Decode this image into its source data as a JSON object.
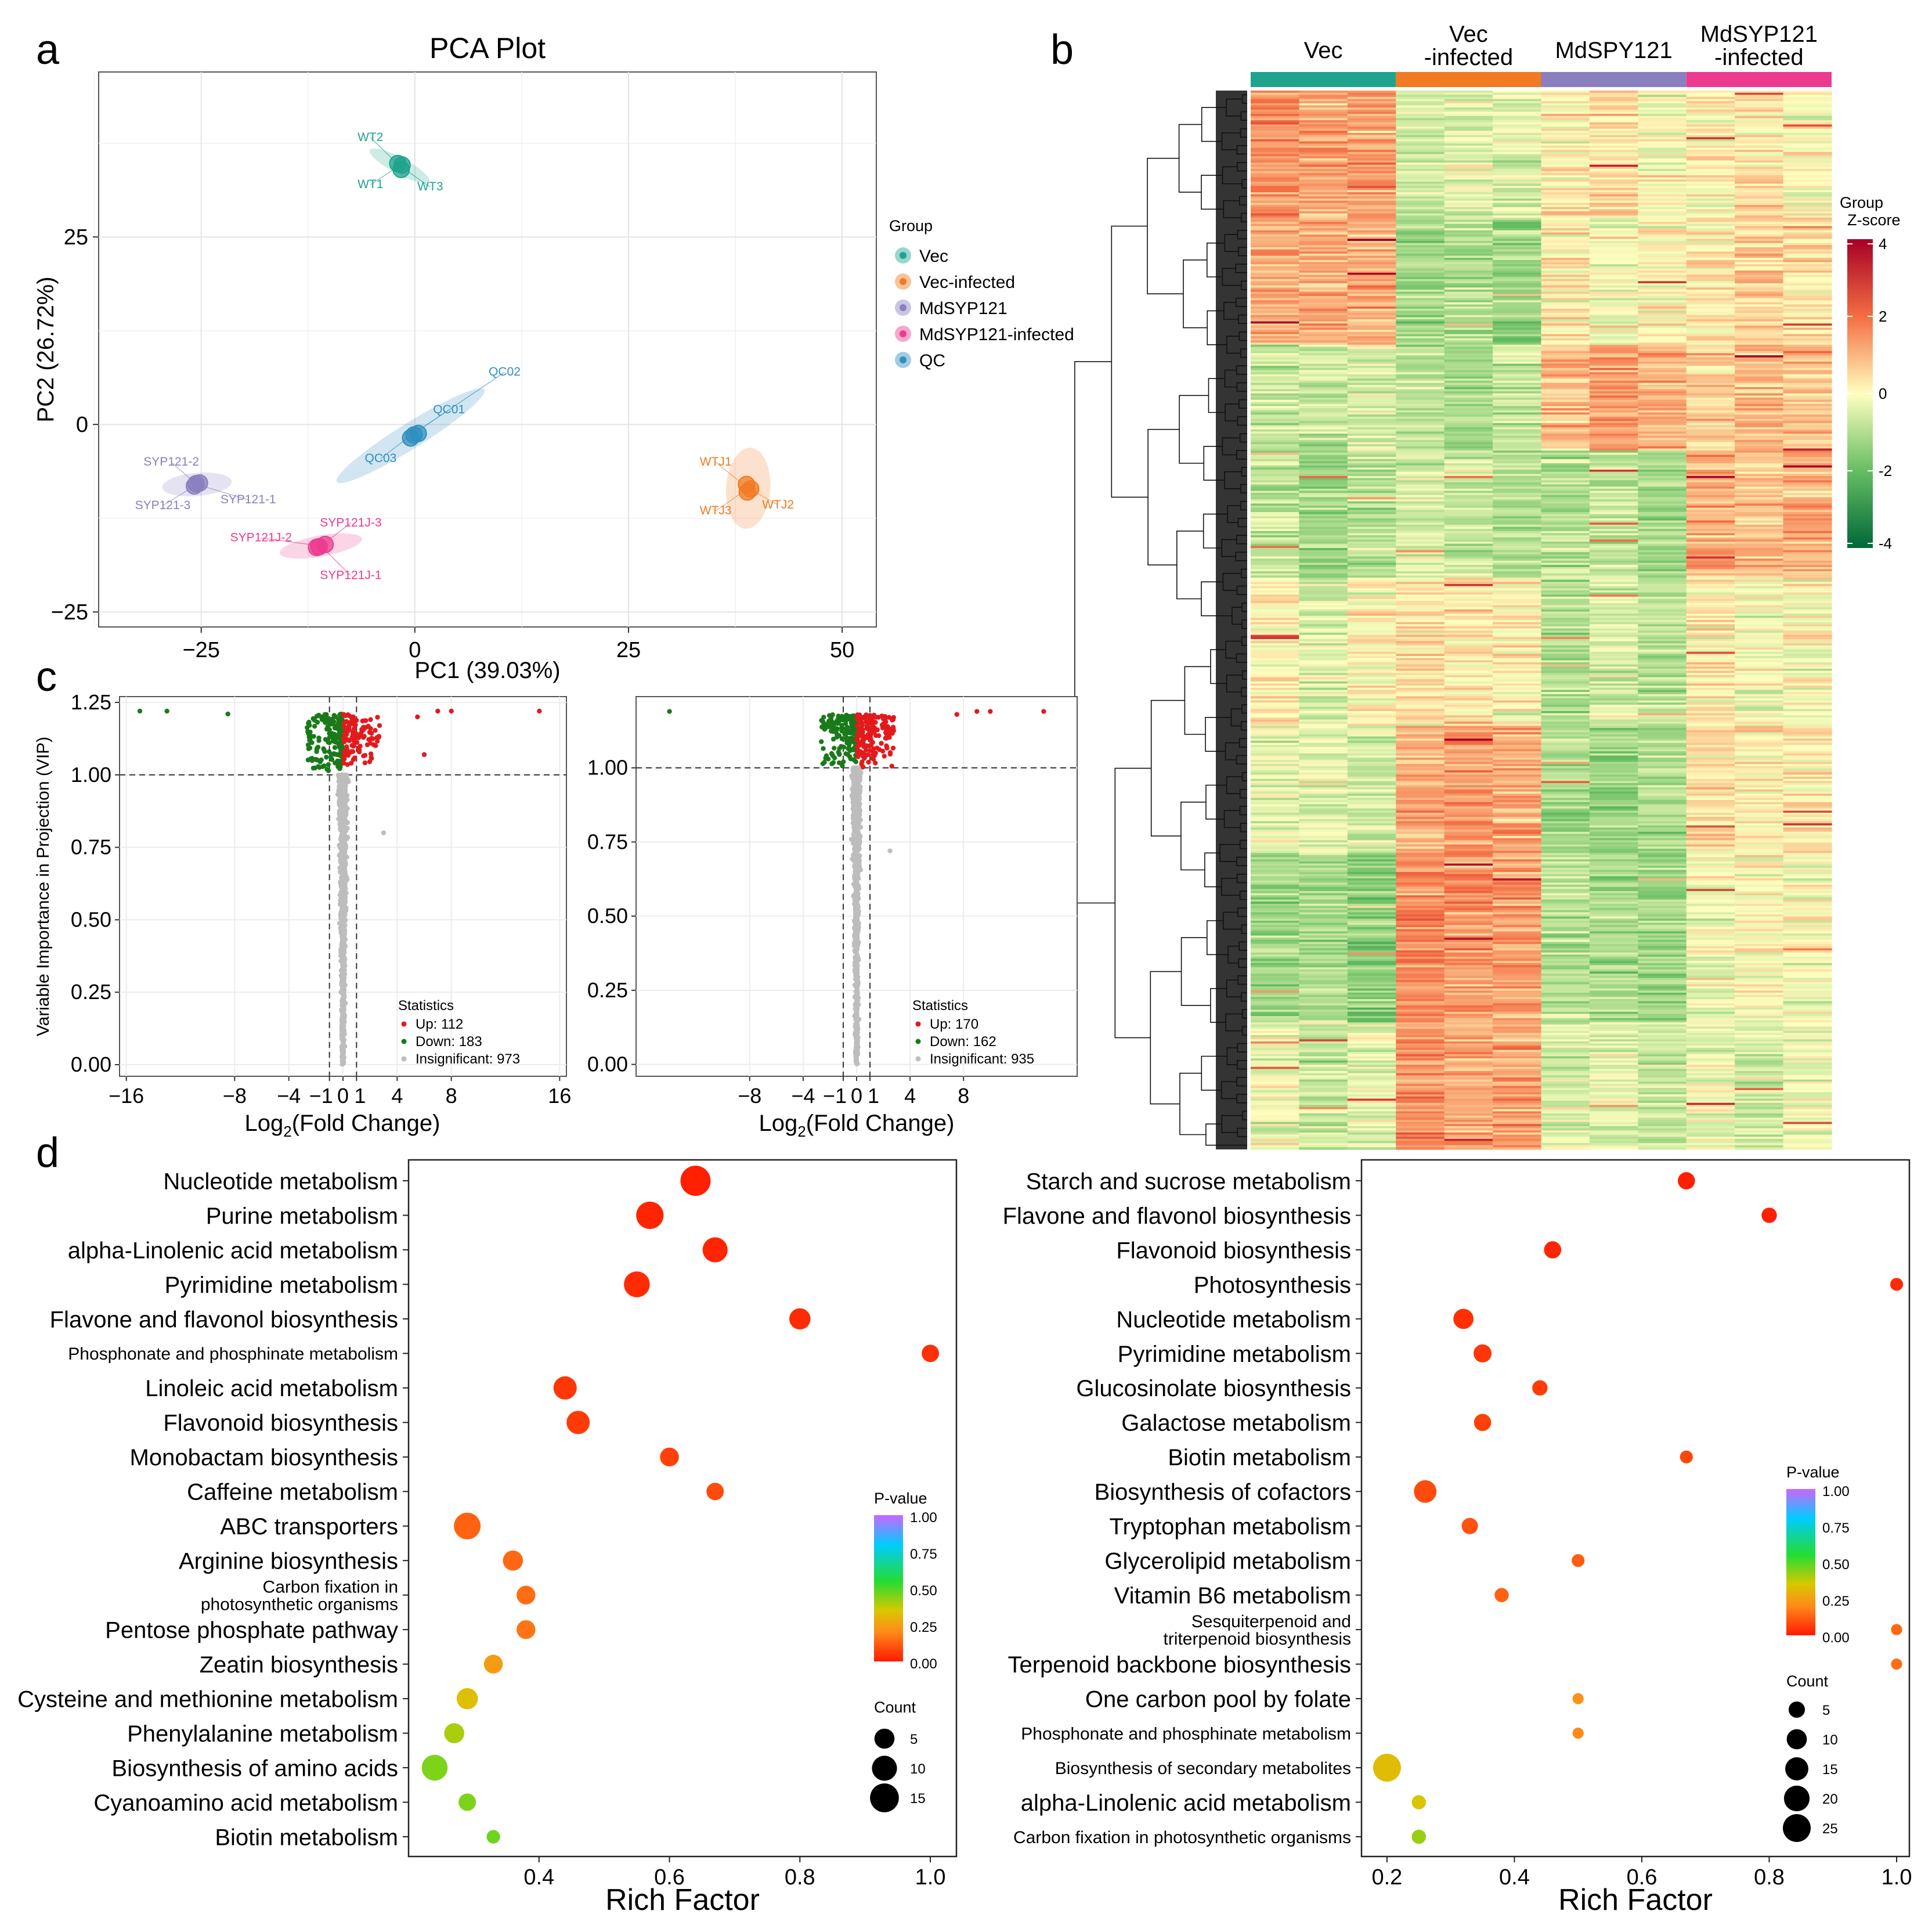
{
  "panel_labels": {
    "a": "a",
    "b": "b",
    "c": "c",
    "d": "d"
  },
  "colors": {
    "vec": "#1fa38c",
    "vec_infected": "#f07b22",
    "mdsyp121": "#8a7fbf",
    "mdsyp121_infected": "#ec3b8e",
    "qc": "#2f8fbf",
    "up": "#e31a1c",
    "down": "#1a7a1a",
    "insig": "#bdbdbd"
  },
  "chart_data": [
    {
      "id": "pca",
      "type": "scatter",
      "title": "PCA Plot",
      "xlabel": "PC1 (39.03%)",
      "ylabel": "PC2 (26.72%)",
      "xlim": [
        -37,
        54
      ],
      "ylim": [
        -27,
        47
      ],
      "xticks": [
        "−25",
        "0",
        "25",
        "50"
      ],
      "xtick_values": [
        -25,
        0,
        25,
        50
      ],
      "yticks": [
        "−25",
        "0",
        "25"
      ],
      "ytick_values": [
        -25,
        0,
        25
      ],
      "legend_title": "Group",
      "legend": [
        "Vec",
        "Vec-infected",
        "MdSYP121",
        "MdSYP121-infected",
        "QC"
      ],
      "groups": [
        {
          "name": "Vec",
          "center": [
            -1.8,
            34.5
          ],
          "points": [
            [
              -2.0,
              34.8
            ],
            [
              -1.6,
              34.0
            ],
            [
              -1.5,
              34.6
            ]
          ],
          "labels": [
            {
              "text": "WT2",
              "x": -5.2,
              "y": 37.8
            },
            {
              "text": "WT1",
              "x": -5.2,
              "y": 31.5
            },
            {
              "text": "WT3",
              "x": 1.8,
              "y": 31.2
            }
          ]
        },
        {
          "name": "Vec-infected",
          "center": [
            39.0,
            -8.5
          ],
          "points": [
            [
              38.8,
              -8.0
            ],
            [
              39.3,
              -8.6
            ],
            [
              38.9,
              -9.0
            ]
          ],
          "labels": [
            {
              "text": "WTJ1",
              "x": 35.2,
              "y": -5.5
            },
            {
              "text": "WTJ3",
              "x": 35.2,
              "y": -12.0
            },
            {
              "text": "WTJ2",
              "x": 42.5,
              "y": -11.2
            }
          ]
        },
        {
          "name": "MdSYP121",
          "center": [
            -25.5,
            -8.0
          ],
          "points": [
            [
              -25.8,
              -8.2
            ],
            [
              -25.2,
              -7.8
            ],
            [
              -25.6,
              -7.9
            ]
          ],
          "labels": [
            {
              "text": "SYP121-2",
              "x": -28.5,
              "y": -5.5
            },
            {
              "text": "SYP121-3",
              "x": -29.5,
              "y": -11.3
            },
            {
              "text": "SYP121-1",
              "x": -19.5,
              "y": -10.5
            }
          ]
        },
        {
          "name": "MdSYP121-infected",
          "center": [
            -11.0,
            -16.2
          ],
          "points": [
            [
              -11.5,
              -16.4
            ],
            [
              -10.5,
              -16.0
            ],
            [
              -11.2,
              -16.3
            ]
          ],
          "labels": [
            {
              "text": "SYP121J-3",
              "x": -7.5,
              "y": -13.6
            },
            {
              "text": "SYP121J-2",
              "x": -18.0,
              "y": -15.6
            },
            {
              "text": "SYP121J-1",
              "x": -7.5,
              "y": -20.6
            }
          ]
        },
        {
          "name": "QC",
          "center": [
            -0.5,
            -1.5
          ],
          "points": [
            [
              -0.5,
              -1.8
            ],
            [
              0.4,
              -1.2
            ],
            [
              -0.1,
              -1.4
            ]
          ],
          "labels": [
            {
              "text": "QC02",
              "x": 10.5,
              "y": 6.5
            },
            {
              "text": "QC01",
              "x": 4.0,
              "y": 1.5
            },
            {
              "text": "QC03",
              "x": -4.0,
              "y": -5.0
            }
          ]
        }
      ]
    },
    {
      "id": "heatmap",
      "type": "heatmap",
      "columns": [
        "Vec",
        "Vec\n-infected",
        "MdSPY121",
        "MdSYP121\n-infected"
      ],
      "column_lines": [
        [
          "Vec"
        ],
        [
          "Vec",
          "-infected"
        ],
        [
          "MdSPY121"
        ],
        [
          "MdSYP121",
          "-infected"
        ]
      ],
      "samples_per_group": 3,
      "legend_title": "Group",
      "legend_subtitle": "Z-score",
      "zlim": [
        -4,
        4
      ],
      "zticks": [
        "4",
        "2",
        "0",
        "-2",
        "-4"
      ],
      "ztick_values": [
        4,
        2,
        0,
        -2,
        -4
      ],
      "row_segments": [
        {
          "rows": 60,
          "values": [
            1.4,
            1.2,
            1.3,
            -0.6,
            -0.4,
            -0.5,
            0.2,
            0.5,
            0.0,
            0.1,
            0.3,
            0.0
          ]
        },
        {
          "rows": 60,
          "values": [
            1.2,
            1.0,
            1.2,
            -1.2,
            -1.0,
            -1.3,
            0.3,
            -0.2,
            0.1,
            0.4,
            0.6,
            0.5
          ]
        },
        {
          "rows": 50,
          "values": [
            -0.6,
            -0.8,
            -0.5,
            -0.9,
            -1.2,
            -0.8,
            0.9,
            1.3,
            1.1,
            0.6,
            0.9,
            0.8
          ]
        },
        {
          "rows": 60,
          "values": [
            -0.8,
            -1.2,
            -0.9,
            -0.5,
            -0.7,
            -0.9,
            -1.0,
            -0.8,
            -1.2,
            1.1,
            0.9,
            1.1
          ]
        },
        {
          "rows": 70,
          "values": [
            0.3,
            -0.4,
            0.1,
            0.4,
            0.3,
            0.2,
            -1.0,
            -0.5,
            -0.9,
            0.2,
            -0.1,
            0.0
          ]
        },
        {
          "rows": 60,
          "values": [
            -0.4,
            -0.3,
            -0.6,
            1.2,
            1.4,
            1.2,
            -1.1,
            -1.3,
            -1.0,
            0.4,
            0.2,
            0.3
          ]
        },
        {
          "rows": 80,
          "values": [
            -1.3,
            -1.1,
            -1.5,
            1.6,
            1.3,
            1.4,
            -0.9,
            -1.1,
            -1.3,
            -0.2,
            0.1,
            -0.1
          ]
        },
        {
          "rows": 60,
          "values": [
            -0.2,
            -0.6,
            -0.4,
            1.5,
            1.2,
            1.3,
            -0.5,
            -0.4,
            -0.6,
            -0.3,
            -0.5,
            -0.2
          ]
        }
      ]
    },
    {
      "id": "volcano_left",
      "type": "scatter",
      "xlabel": "Log",
      "xlabel_sub": "2",
      "xlabel_rest": "(Fold Change)",
      "ylabel": "Variable Importance in Projection (VIP)",
      "xlim": [
        -16.5,
        16.5
      ],
      "ylim": [
        -0.04,
        1.27
      ],
      "xticks": [
        "−16",
        "−8",
        "−4",
        "−1",
        "0",
        "1",
        "4",
        "8",
        "16"
      ],
      "xtick_values": [
        -16,
        -8,
        -4,
        -1,
        0,
        1,
        4,
        8,
        16
      ],
      "yticks": [
        "0.00",
        "0.25",
        "0.50",
        "0.75",
        "1.00",
        "1.25"
      ],
      "ytick_values": [
        0,
        0.25,
        0.5,
        0.75,
        1.0,
        1.25
      ],
      "vline": [
        -1,
        1
      ],
      "hline": 1.0,
      "legend_title": "Statistics",
      "legend": [
        "Up: 112",
        "Down: 183",
        "Insignificant: 973"
      ],
      "counts": {
        "up": 112,
        "down": 183,
        "insig": 973
      },
      "outliers_up": [
        [
          14.5,
          1.22
        ],
        [
          8.0,
          1.22
        ],
        [
          7.0,
          1.22
        ],
        [
          5.5,
          1.2
        ],
        [
          6.0,
          1.07
        ],
        [
          3.0,
          0.8
        ]
      ],
      "outliers_down": [
        [
          -15.0,
          1.22
        ],
        [
          -13.0,
          1.22
        ],
        [
          -8.5,
          1.21
        ]
      ]
    },
    {
      "id": "volcano_right",
      "type": "scatter",
      "xlabel": "Log",
      "xlabel_sub": "2",
      "xlabel_rest": "(Fold Change)",
      "xlim": [
        -16.5,
        16.5
      ],
      "ylim": [
        -0.04,
        1.24
      ],
      "xticks": [
        "−8",
        "−4",
        "−1",
        "0",
        "1",
        "4",
        "8"
      ],
      "xtick_values": [
        -8,
        -4,
        -1,
        0,
        1,
        4,
        8
      ],
      "yticks": [
        "0.00",
        "0.25",
        "0.50",
        "0.75",
        "1.00"
      ],
      "ytick_values": [
        0,
        0.25,
        0.5,
        0.75,
        1.0
      ],
      "vline": [
        -1,
        1
      ],
      "hline": 1.0,
      "legend_title": "Statistics",
      "legend": [
        "Up: 170",
        "Down: 162",
        "Insignificant: 935"
      ],
      "counts": {
        "up": 170,
        "down": 162,
        "insig": 935
      },
      "outliers_up": [
        [
          14.0,
          1.19
        ],
        [
          10.0,
          1.19
        ],
        [
          9.0,
          1.19
        ],
        [
          7.5,
          1.18
        ],
        [
          2.5,
          0.72
        ]
      ],
      "outliers_down": [
        [
          -14.0,
          1.19
        ]
      ]
    },
    {
      "id": "kegg_left",
      "type": "scatter",
      "xlabel": "Rich Factor",
      "xlim": [
        0.2,
        1.04
      ],
      "xticks": [
        "0.4",
        "0.6",
        "0.8",
        "1.0"
      ],
      "xtick_values": [
        0.4,
        0.6,
        0.8,
        1.0
      ],
      "color_legend_title": "P-value",
      "color_ticks": [
        "1.00",
        "0.75",
        "0.50",
        "0.25",
        "0.00"
      ],
      "size_legend_title": "Count",
      "size_ticks": [
        "5",
        "10",
        "15"
      ],
      "size_values": [
        5,
        10,
        15
      ],
      "pathways": [
        {
          "name": "Nucleotide metabolism",
          "rich": 0.64,
          "count": 17,
          "p": 0.01
        },
        {
          "name": "Purine metabolism",
          "rich": 0.57,
          "count": 13,
          "p": 0.02
        },
        {
          "name": "alpha-Linolenic acid metabolism",
          "rich": 0.67,
          "count": 10,
          "p": 0.02
        },
        {
          "name": "Pyrimidine metabolism",
          "rich": 0.55,
          "count": 11,
          "p": 0.03
        },
        {
          "name": "Flavone and flavonol biosynthesis",
          "rich": 0.8,
          "count": 6,
          "p": 0.03
        },
        {
          "name": "Phosphonate and phosphinate metabolism",
          "rich": 1.0,
          "count": 3,
          "p": 0.04
        },
        {
          "name": "Linoleic acid metabolism",
          "rich": 0.44,
          "count": 8,
          "p": 0.05
        },
        {
          "name": "Flavonoid biosynthesis",
          "rich": 0.46,
          "count": 8,
          "p": 0.06
        },
        {
          "name": "Monobactam biosynthesis",
          "rich": 0.6,
          "count": 4,
          "p": 0.07
        },
        {
          "name": "Caffeine metabolism",
          "rich": 0.67,
          "count": 3,
          "p": 0.09
        },
        {
          "name": "ABC transporters",
          "rich": 0.29,
          "count": 12,
          "p": 0.13
        },
        {
          "name": "Arginine biosynthesis",
          "rich": 0.36,
          "count": 5,
          "p": 0.14
        },
        {
          "name": "Carbon fixation in\nphotosynthetic organisms",
          "rich": 0.38,
          "count": 4,
          "p": 0.15
        },
        {
          "name": "Pentose phosphate pathway",
          "rich": 0.38,
          "count": 4,
          "p": 0.16
        },
        {
          "name": "Zeatin biosynthesis",
          "rich": 0.33,
          "count": 4,
          "p": 0.24
        },
        {
          "name": "Cysteine and methionine metabolism",
          "rich": 0.29,
          "count": 6,
          "p": 0.33
        },
        {
          "name": "Phenylalanine metabolism",
          "rich": 0.27,
          "count": 5,
          "p": 0.4
        },
        {
          "name": "Biosynthesis of amino acids",
          "rich": 0.24,
          "count": 11,
          "p": 0.45
        },
        {
          "name": "Cyanoamino acid metabolism",
          "rich": 0.29,
          "count": 3,
          "p": 0.45
        },
        {
          "name": "Biotin metabolism",
          "rich": 0.33,
          "count": 1,
          "p": 0.47
        }
      ]
    },
    {
      "id": "kegg_right",
      "type": "scatter",
      "xlabel": "Rich Factor",
      "xlim": [
        0.16,
        1.02
      ],
      "xticks": [
        "0.2",
        "0.4",
        "0.6",
        "0.8",
        "1.0"
      ],
      "xtick_values": [
        0.2,
        0.4,
        0.6,
        0.8,
        1.0
      ],
      "color_legend_title": "P-value",
      "color_ticks": [
        "1.00",
        "0.75",
        "0.50",
        "0.25",
        "0.00"
      ],
      "size_legend_title": "Count",
      "size_ticks": [
        "5",
        "10",
        "15",
        "20",
        "25"
      ],
      "size_values": [
        5,
        10,
        15,
        20,
        25
      ],
      "pathways": [
        {
          "name": "Starch and sucrose metabolism",
          "rich": 0.67,
          "count": 6,
          "p": 0.01
        },
        {
          "name": "Flavone and flavonol biosynthesis",
          "rich": 0.8,
          "count": 4,
          "p": 0.01
        },
        {
          "name": "Flavonoid biosynthesis",
          "rich": 0.46,
          "count": 6,
          "p": 0.02
        },
        {
          "name": "Photosynthesis",
          "rich": 1.0,
          "count": 2,
          "p": 0.03
        },
        {
          "name": "Nucleotide metabolism",
          "rich": 0.32,
          "count": 10,
          "p": 0.04
        },
        {
          "name": "Pyrimidine metabolism",
          "rich": 0.35,
          "count": 7,
          "p": 0.05
        },
        {
          "name": "Glucosinolate biosynthesis",
          "rich": 0.44,
          "count": 4,
          "p": 0.06
        },
        {
          "name": "Galactose metabolism",
          "rich": 0.35,
          "count": 6,
          "p": 0.07
        },
        {
          "name": "Biotin metabolism",
          "rich": 0.67,
          "count": 2,
          "p": 0.08
        },
        {
          "name": "Biosynthesis of cofactors",
          "rich": 0.26,
          "count": 14,
          "p": 0.09
        },
        {
          "name": "Tryptophan metabolism",
          "rich": 0.33,
          "count": 5,
          "p": 0.1
        },
        {
          "name": "Glycerolipid metabolism",
          "rich": 0.5,
          "count": 2,
          "p": 0.12
        },
        {
          "name": "Vitamin B6 metabolism",
          "rich": 0.38,
          "count": 3,
          "p": 0.13
        },
        {
          "name": "Sesquiterpenoid and\ntriterpenoid biosynthesis",
          "rich": 1.0,
          "count": 1,
          "p": 0.14
        },
        {
          "name": "Terpenoid backbone biosynthesis",
          "rich": 1.0,
          "count": 1,
          "p": 0.15
        },
        {
          "name": "One carbon pool by folate",
          "rich": 0.5,
          "count": 1,
          "p": 0.22
        },
        {
          "name": "Phosphonate and phosphinate metabolism",
          "rich": 0.5,
          "count": 1,
          "p": 0.2
        },
        {
          "name": "Biosynthesis of secondary metabolites",
          "rich": 0.2,
          "count": 25,
          "p": 0.32
        },
        {
          "name": "alpha-Linolenic acid metabolism",
          "rich": 0.25,
          "count": 3,
          "p": 0.34
        },
        {
          "name": "Carbon fixation in photosynthetic organisms",
          "rich": 0.25,
          "count": 3,
          "p": 0.42
        }
      ]
    }
  ]
}
